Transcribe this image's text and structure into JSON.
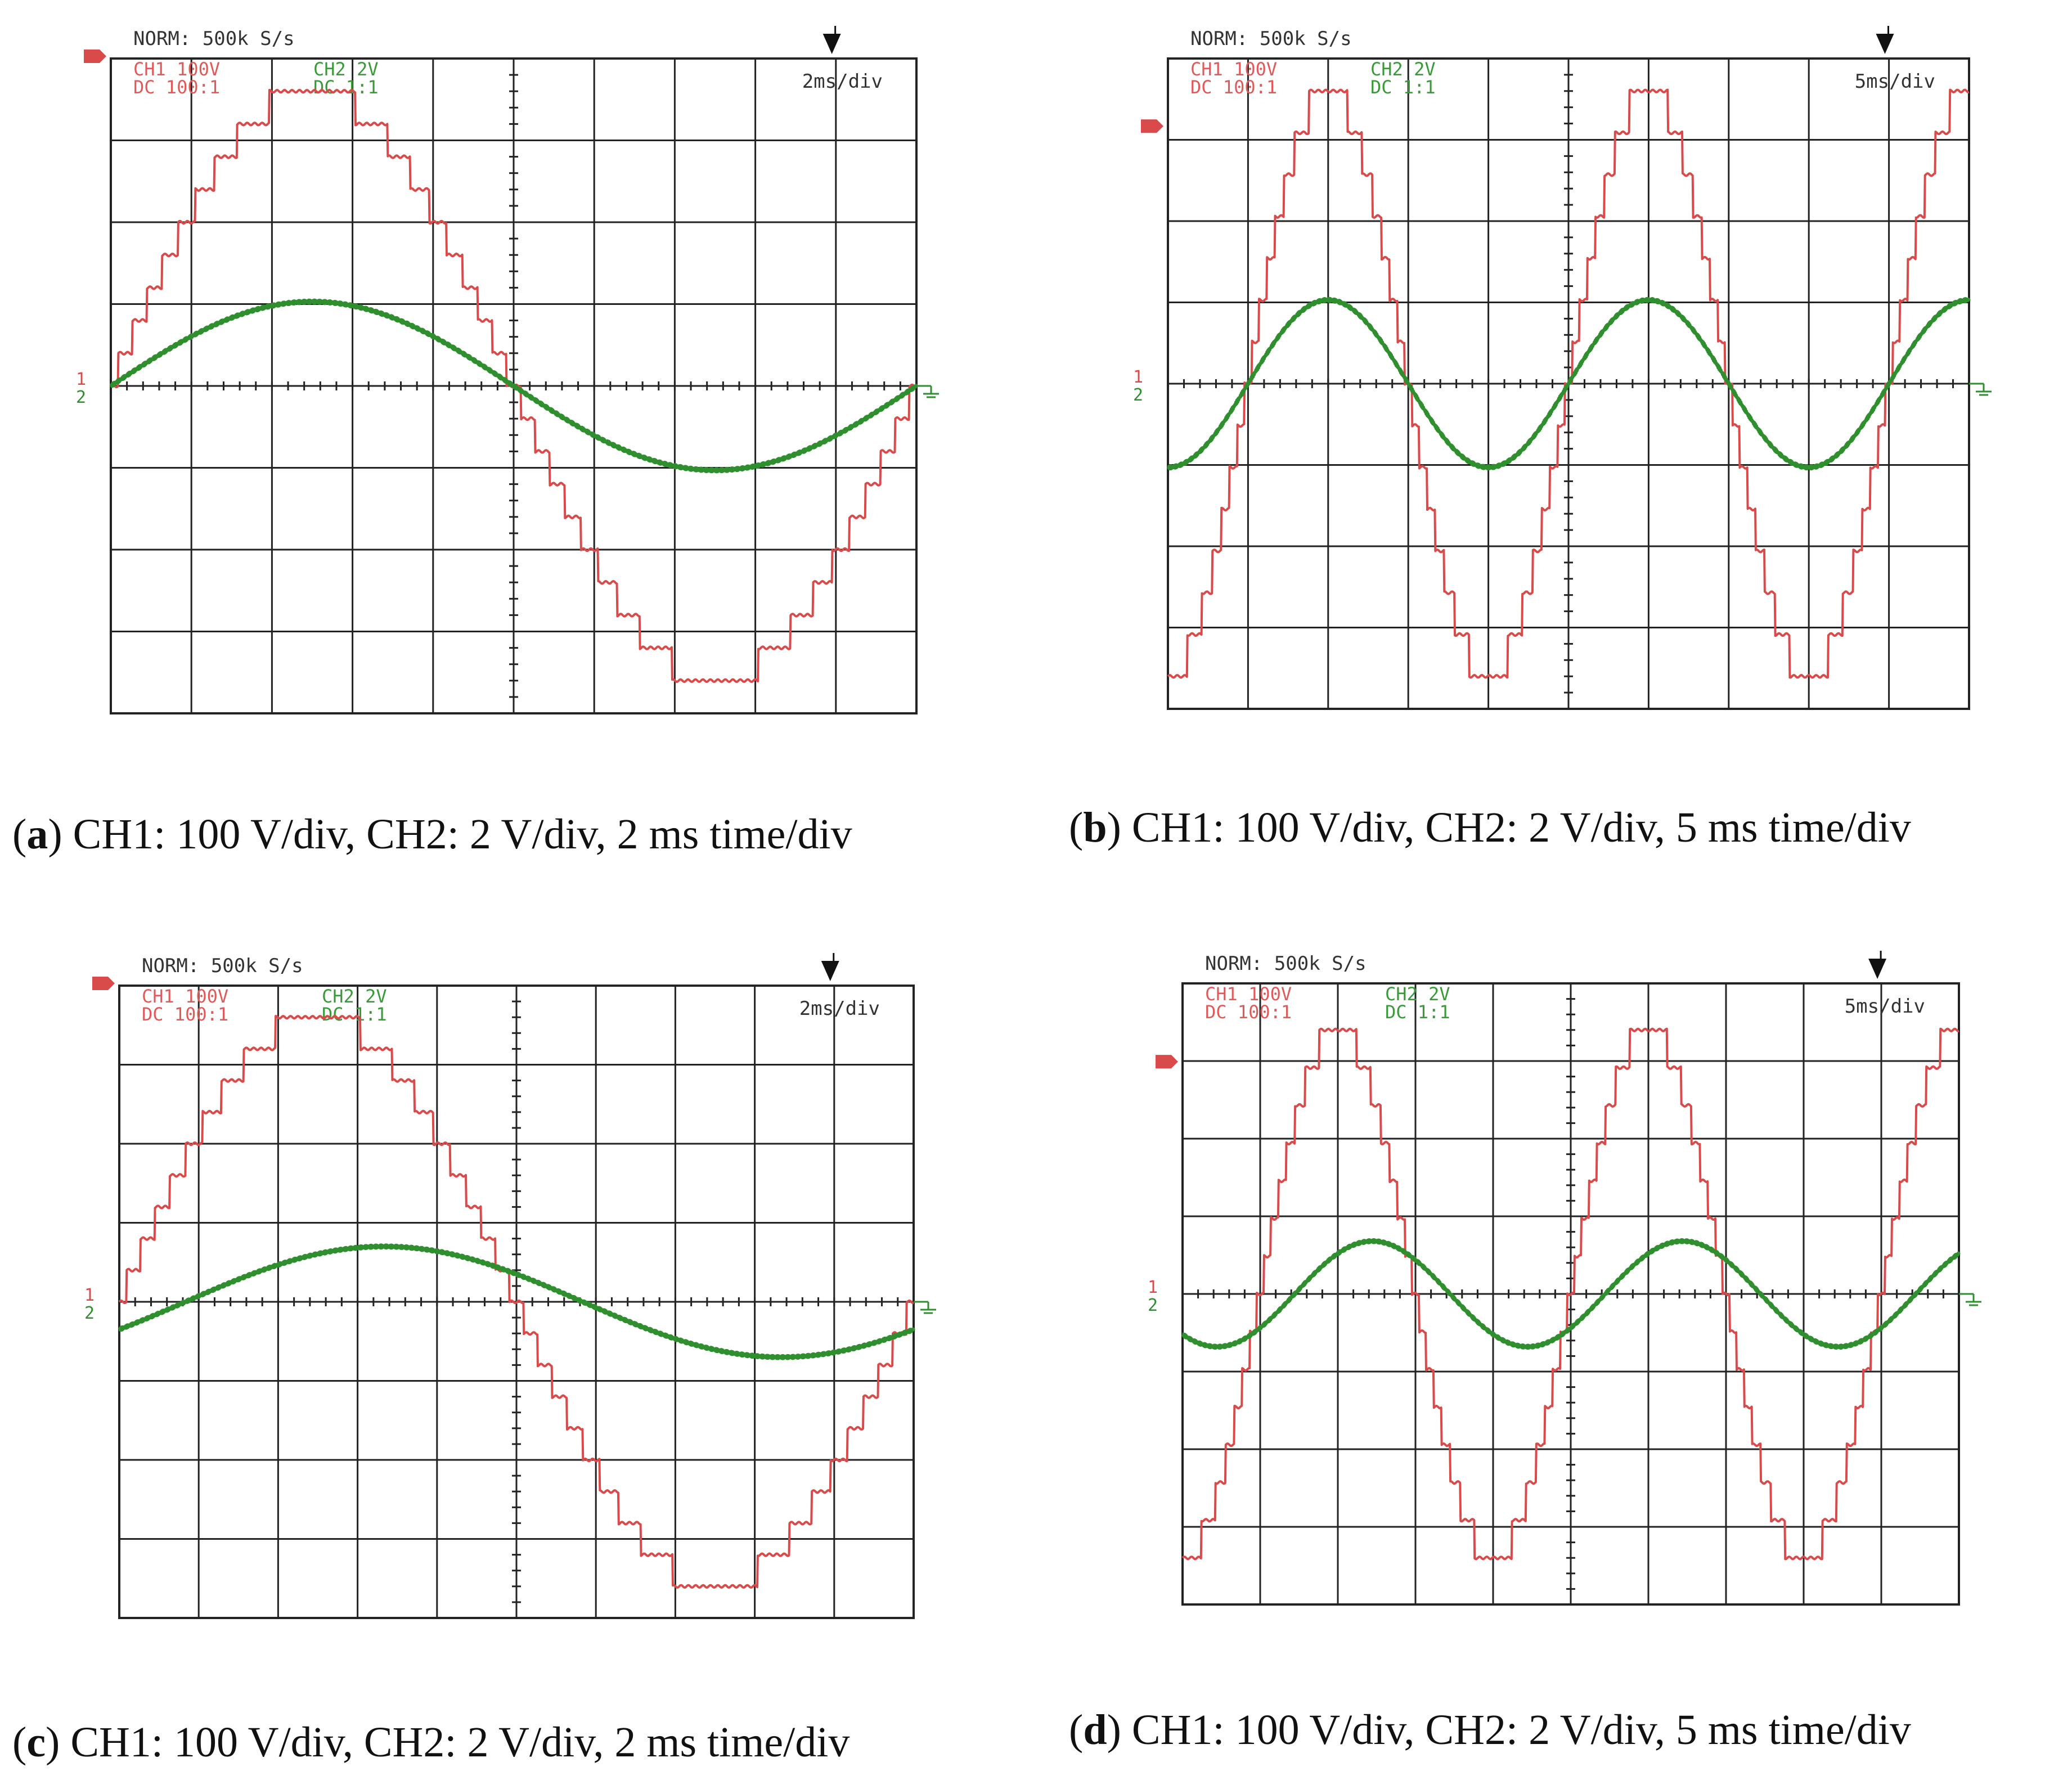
{
  "colors": {
    "ch1": "#d94a4a",
    "ch2": "#2f8f2f",
    "grid": "#222222"
  },
  "chart_data": [
    {
      "type": "line",
      "id": "a",
      "header": "NORM: 500k S/s",
      "timebase": "2ms/div",
      "ch1_label": [
        "CH1 100V",
        "DC  100:1"
      ],
      "ch2_label": [
        "CH2 2V",
        "DC  1:1"
      ],
      "channel_marker_top": "1",
      "channel_marker_bottom": "2",
      "caption_letter": "a",
      "caption_text": "CH1: 100 V/div, CH2: 2 V/div, 2 ms time/div",
      "xlim": [
        -10,
        10
      ],
      "ylim_div": [
        -4,
        4
      ],
      "series": [
        {
          "channel": "CH1",
          "waveform": "staircase-sine",
          "amplitude_div": 3.6,
          "period_ms": 20,
          "phase_deg": 180,
          "steps_per_quarter": 9,
          "flat_top_ms": 1.8
        },
        {
          "channel": "CH2",
          "waveform": "sine",
          "amplitude_div": 1.03,
          "period_ms": 20,
          "phase_deg": 180
        }
      ]
    },
    {
      "type": "line",
      "id": "b",
      "header": "NORM: 500k S/s",
      "timebase": "5ms/div",
      "ch1_label": [
        "CH1 100V",
        "DC  100:1"
      ],
      "ch2_label": [
        "CH2 2V",
        "DC  1:1"
      ],
      "channel_marker_top": "1",
      "channel_marker_bottom": "2",
      "caption_letter": "b",
      "caption_text": "CH1: 100 V/div, CH2: 2 V/div, 5 ms time/div",
      "xlim": [
        -25,
        25
      ],
      "ylim_div": [
        -4,
        4
      ],
      "series": [
        {
          "channel": "CH1",
          "waveform": "staircase-sine",
          "amplitude_div": 3.6,
          "period_ms": 20,
          "phase_deg": 0,
          "steps_per_quarter": 7,
          "flat_top_ms": 1.2
        },
        {
          "channel": "CH2",
          "waveform": "sine",
          "amplitude_div": 1.03,
          "period_ms": 20,
          "phase_deg": 0
        }
      ]
    },
    {
      "type": "line",
      "id": "c",
      "header": "NORM: 500k S/s",
      "timebase": "2ms/div",
      "ch1_label": [
        "CH1 100V",
        "DC  100:1"
      ],
      "ch2_label": [
        "CH2 2V",
        "DC  1:1"
      ],
      "channel_marker_top": "1",
      "channel_marker_bottom": "2",
      "caption_letter": "c",
      "caption_text": "CH1: 100 V/div, CH2: 2 V/div, 2 ms time/div",
      "xlim": [
        -10,
        10
      ],
      "ylim_div": [
        -4,
        4
      ],
      "series": [
        {
          "channel": "CH1",
          "waveform": "staircase-sine",
          "amplitude_div": 3.6,
          "period_ms": 20,
          "phase_deg": 180,
          "steps_per_quarter": 9,
          "flat_top_ms": 1.8
        },
        {
          "channel": "CH2",
          "waveform": "sine",
          "amplitude_div": 0.7,
          "period_ms": 20,
          "phase_deg": 150
        }
      ]
    },
    {
      "type": "line",
      "id": "d",
      "header": "NORM: 500k S/s",
      "timebase": "5ms/div",
      "ch1_label": [
        "CH1 100V",
        "DC  100:1"
      ],
      "ch2_label": [
        "CH2 2V",
        "DC  1:1"
      ],
      "channel_marker_top": "1",
      "channel_marker_bottom": "2",
      "caption_letter": "d",
      "caption_text": "CH1: 100 V/div, CH2: 2 V/div, 5 ms time/div",
      "xlim": [
        -25,
        25
      ],
      "ylim_div": [
        -4,
        4
      ],
      "series": [
        {
          "channel": "CH1",
          "waveform": "staircase-sine",
          "amplitude_div": 3.4,
          "period_ms": 20,
          "phase_deg": 0,
          "steps_per_quarter": 7,
          "flat_top_ms": 1.2
        },
        {
          "channel": "CH2",
          "waveform": "sine",
          "amplitude_div": 0.68,
          "period_ms": 20,
          "phase_deg": -40
        }
      ]
    }
  ]
}
